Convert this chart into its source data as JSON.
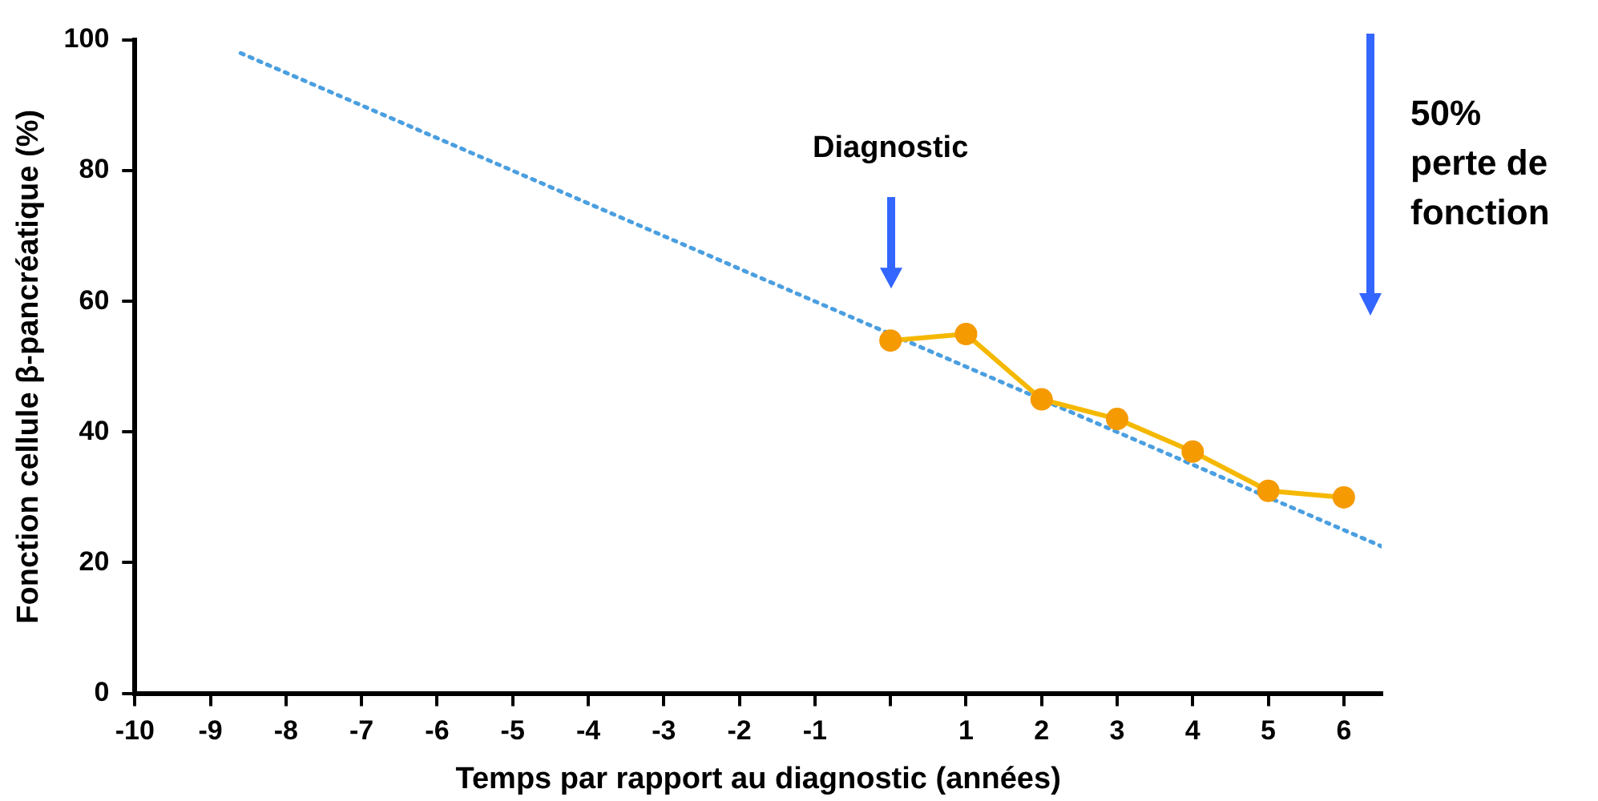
{
  "chart_data": {
    "type": "line",
    "xlabel": "Temps par rapport au diagnostic (années)",
    "ylabel": "Fonction cellule β-pancréatique (%)",
    "xlim": [
      -10,
      6.5
    ],
    "xticks": [
      -10,
      -9,
      -8,
      -7,
      -6,
      -5,
      -4,
      -3,
      -2,
      -1,
      {
        "value": 0,
        "label": null
      },
      1,
      2,
      3,
      4,
      5,
      6
    ],
    "ylim": [
      0,
      100
    ],
    "yticks": [
      0,
      20,
      40,
      60,
      80,
      100
    ],
    "grid": false,
    "legend": false,
    "series": [
      {
        "type": "line",
        "color": "#4a9fe0",
        "line_style": "dotted",
        "marker": "none",
        "x": [
          -8.6,
          6.5
        ],
        "values": [
          98,
          22.5
        ]
      },
      {
        "type": "line",
        "color": "#f5b800",
        "line_style": "solid",
        "marker": "circle",
        "x": [
          0,
          1,
          2,
          3,
          4,
          5,
          6
        ],
        "values": [
          54,
          55,
          45,
          42,
          37,
          31,
          30
        ]
      }
    ],
    "annotations": [
      "Diagnostic",
      "50% perte de fonction"
    ]
  }
}
